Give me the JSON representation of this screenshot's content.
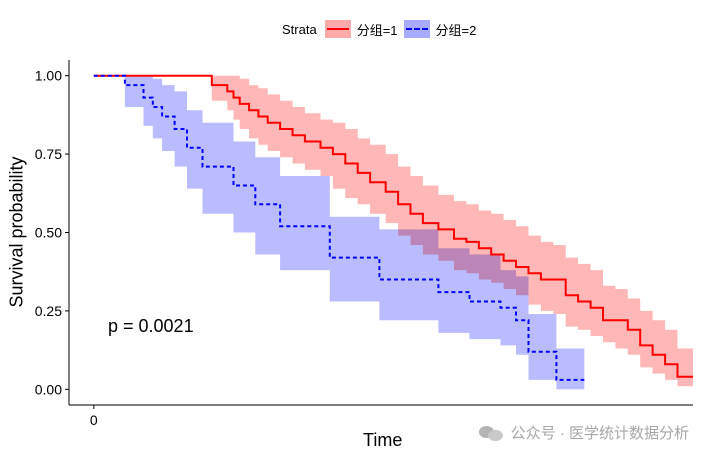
{
  "legend": {
    "title": "Strata",
    "items": [
      {
        "label": "分组=1",
        "color": "#ff0000",
        "fill": "#ffaaaa",
        "style": "solid"
      },
      {
        "label": "分组=2",
        "color": "#0000ff",
        "fill": "#aaaaff",
        "style": "dashed"
      }
    ]
  },
  "annotation": {
    "pvalue": "p = 0.0021"
  },
  "watermark": "公众号 · 医学统计数据分析",
  "chart_data": {
    "type": "line",
    "subtype": "kaplan-meier survival curve with confidence bands",
    "xlabel": "Time",
    "ylabel": "Survival probability",
    "xticks": [
      0
    ],
    "yticks": [
      "0.00",
      "0.25",
      "0.50",
      "0.75",
      "1.00"
    ],
    "xlim": [
      -40,
      965
    ],
    "ylim": [
      -0.05,
      1.05
    ],
    "grid": false,
    "legend_position": "top",
    "series": [
      {
        "name": "分组=1",
        "color": "#ff0000",
        "band_color": "#ffaaaa",
        "line_style": "solid",
        "x": [
          0,
          190,
          215,
          225,
          235,
          250,
          265,
          280,
          300,
          320,
          340,
          365,
          385,
          405,
          425,
          445,
          470,
          490,
          510,
          530,
          555,
          580,
          600,
          620,
          640,
          660,
          680,
          700,
          720,
          740,
          760,
          780,
          800,
          820,
          840,
          860,
          880,
          900,
          920,
          940
        ],
        "y": [
          1.0,
          0.97,
          0.95,
          0.93,
          0.91,
          0.89,
          0.87,
          0.85,
          0.83,
          0.81,
          0.79,
          0.77,
          0.75,
          0.72,
          0.69,
          0.66,
          0.63,
          0.59,
          0.56,
          0.53,
          0.51,
          0.48,
          0.47,
          0.45,
          0.43,
          0.41,
          0.39,
          0.37,
          0.35,
          0.35,
          0.3,
          0.28,
          0.26,
          0.22,
          0.22,
          0.19,
          0.14,
          0.11,
          0.08,
          0.04
        ],
        "lower": [
          1.0,
          0.92,
          0.89,
          0.86,
          0.83,
          0.8,
          0.78,
          0.76,
          0.74,
          0.72,
          0.7,
          0.68,
          0.64,
          0.61,
          0.59,
          0.56,
          0.53,
          0.49,
          0.46,
          0.43,
          0.41,
          0.38,
          0.37,
          0.35,
          0.34,
          0.32,
          0.3,
          0.27,
          0.25,
          0.24,
          0.2,
          0.19,
          0.17,
          0.15,
          0.13,
          0.11,
          0.07,
          0.05,
          0.03,
          0.01
        ],
        "upper": [
          1.0,
          1.0,
          1.0,
          1.0,
          0.99,
          0.97,
          0.96,
          0.94,
          0.92,
          0.9,
          0.88,
          0.86,
          0.85,
          0.83,
          0.8,
          0.78,
          0.75,
          0.71,
          0.68,
          0.65,
          0.62,
          0.6,
          0.59,
          0.57,
          0.56,
          0.54,
          0.52,
          0.49,
          0.47,
          0.46,
          0.42,
          0.4,
          0.38,
          0.33,
          0.32,
          0.29,
          0.25,
          0.22,
          0.19,
          0.13
        ],
        "x_end": 965
      },
      {
        "name": "分组=2",
        "color": "#0000ff",
        "band_color": "#aaaaff",
        "line_style": "dashed",
        "x": [
          0,
          50,
          80,
          95,
          110,
          130,
          150,
          175,
          225,
          260,
          300,
          380,
          460,
          555,
          605,
          655,
          680,
          700,
          745
        ],
        "y": [
          1.0,
          0.97,
          0.93,
          0.9,
          0.87,
          0.83,
          0.77,
          0.71,
          0.65,
          0.59,
          0.52,
          0.42,
          0.35,
          0.31,
          0.28,
          0.26,
          0.22,
          0.12,
          0.03
        ],
        "lower": [
          1.0,
          0.9,
          0.84,
          0.8,
          0.76,
          0.71,
          0.64,
          0.56,
          0.5,
          0.43,
          0.38,
          0.28,
          0.22,
          0.18,
          0.16,
          0.14,
          0.11,
          0.03,
          0.0
        ],
        "upper": [
          1.0,
          1.0,
          1.0,
          0.99,
          0.97,
          0.95,
          0.89,
          0.85,
          0.79,
          0.74,
          0.68,
          0.55,
          0.51,
          0.45,
          0.43,
          0.38,
          0.36,
          0.24,
          0.13
        ],
        "x_end": 790
      }
    ]
  }
}
